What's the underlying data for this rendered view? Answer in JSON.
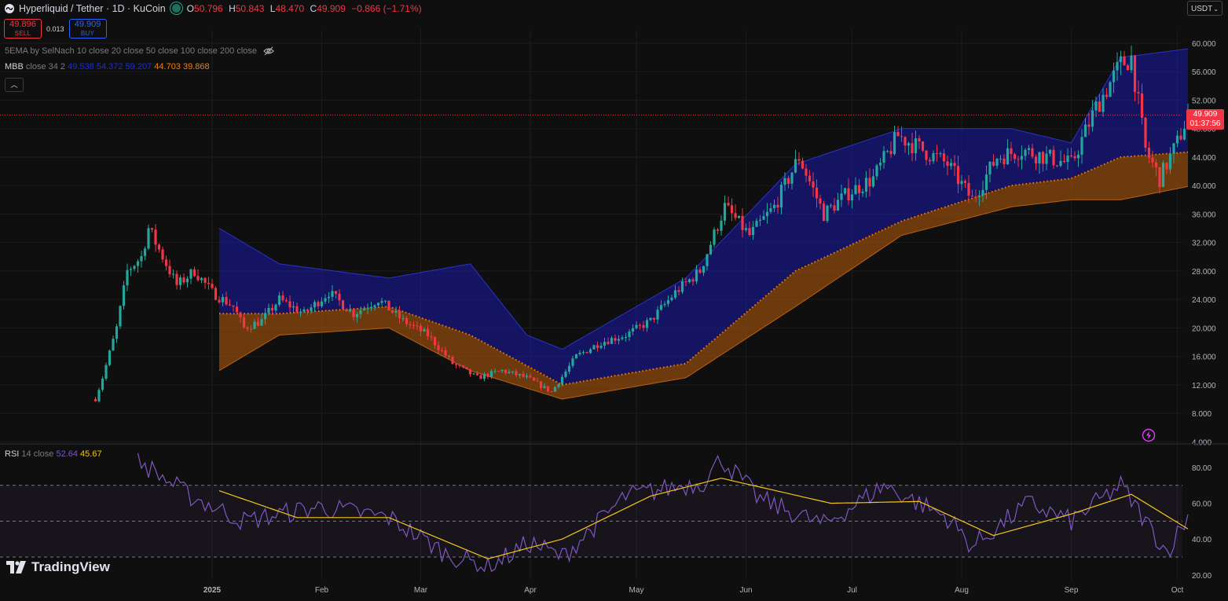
{
  "header": {
    "title": "Hyperliquid / Tether · 1D · KuCoin",
    "ohlc": [
      {
        "k": "O",
        "v": "50.796"
      },
      {
        "k": "H",
        "v": "50.843"
      },
      {
        "k": "L",
        "v": "48.470"
      },
      {
        "k": "C",
        "v": "49.909"
      }
    ],
    "change": "−0.866 (−1.71%)"
  },
  "trade": {
    "sell_price": "49.896",
    "sell_label": "SELL",
    "spread": "0.013",
    "buy_price": "49.909",
    "buy_label": "BUY"
  },
  "indicators": {
    "ema_label": "5EMA by SelNach 10 close 20 close 50 close 100 close 200 close",
    "mbb_name": "MBB",
    "mbb_params": "close 34 2",
    "mbb_values": [
      "49.538",
      "54.372",
      "59.207",
      "44.703",
      "39.868"
    ],
    "mbb_colors": [
      "#1e2bd8",
      "#1e2bd8",
      "#1e2bd8",
      "#f57c00",
      "#f57c00"
    ],
    "rsi_name": "RSI",
    "rsi_params": "14 close",
    "rsi_value": "52.64",
    "rsi_ma_value": "45.67"
  },
  "currency": "USDT",
  "price_label": {
    "price": "49.909",
    "countdown": "01:37:56"
  },
  "brand": "TradingView",
  "icons": [
    "hyperliquid-logo-icon",
    "eye-hidden-icon",
    "chevron-up-icon",
    "chevron-down-icon",
    "lightning-alert-icon",
    "tradingview-logo-icon"
  ],
  "colors": {
    "up": "#26a69a",
    "down": "#f23645",
    "upper_band": "#1a1aa8",
    "lower_band": "#a0520d",
    "basis": "#f57c00",
    "rsi": "#7e57c2",
    "rsi_ma": "#f5c518",
    "background": "#0f0f0f"
  },
  "chart_data": [
    {
      "type": "candlestick",
      "title": "Hyperliquid / Tether · 1D · KuCoin",
      "xlabel": "",
      "ylabel": "",
      "x_ticks": [
        "2025",
        "Feb",
        "Mar",
        "Apr",
        "May",
        "Jun",
        "Jul",
        "Aug",
        "Sep",
        "Oct"
      ],
      "y_ticks": [
        "60.000",
        "56.000",
        "52.000",
        "48.000",
        "44.000",
        "40.000",
        "36.000",
        "32.000",
        "28.000",
        "24.000",
        "20.000",
        "16.000",
        "12.000",
        "8.000",
        "4.000"
      ],
      "ylim": [
        4,
        60
      ],
      "close_path": [
        [
          "2024-11-29",
          10
        ],
        [
          "2024-12-01",
          13
        ],
        [
          "2024-12-05",
          20
        ],
        [
          "2024-12-08",
          28
        ],
        [
          "2024-12-12",
          30
        ],
        [
          "2024-12-14",
          34
        ],
        [
          "2024-12-17",
          31
        ],
        [
          "2024-12-22",
          26
        ],
        [
          "2024-12-27",
          28
        ],
        [
          "2025-01-01",
          25
        ],
        [
          "2025-01-07",
          23
        ],
        [
          "2025-01-10",
          20
        ],
        [
          "2025-01-15",
          21
        ],
        [
          "2025-01-20",
          24
        ],
        [
          "2025-01-27",
          22
        ],
        [
          "2025-02-03",
          25
        ],
        [
          "2025-02-10",
          22
        ],
        [
          "2025-02-17",
          24
        ],
        [
          "2025-02-24",
          21
        ],
        [
          "2025-03-03",
          19
        ],
        [
          "2025-03-10",
          15
        ],
        [
          "2025-03-17",
          13
        ],
        [
          "2025-03-24",
          14
        ],
        [
          "2025-03-31",
          13
        ],
        [
          "2025-04-07",
          11
        ],
        [
          "2025-04-14",
          16
        ],
        [
          "2025-04-21",
          18
        ],
        [
          "2025-04-28",
          19
        ],
        [
          "2025-05-05",
          21
        ],
        [
          "2025-05-12",
          25
        ],
        [
          "2025-05-19",
          28
        ],
        [
          "2025-05-26",
          37
        ],
        [
          "2025-06-02",
          33
        ],
        [
          "2025-06-09",
          37
        ],
        [
          "2025-06-16",
          44
        ],
        [
          "2025-06-23",
          36
        ],
        [
          "2025-06-30",
          39
        ],
        [
          "2025-07-07",
          41
        ],
        [
          "2025-07-14",
          47
        ],
        [
          "2025-07-21",
          45
        ],
        [
          "2025-07-28",
          43
        ],
        [
          "2025-08-04",
          38
        ],
        [
          "2025-08-11",
          44
        ],
        [
          "2025-08-18",
          45
        ],
        [
          "2025-08-25",
          44
        ],
        [
          "2025-09-01",
          43
        ],
        [
          "2025-09-08",
          51
        ],
        [
          "2025-09-15",
          57
        ],
        [
          "2025-09-18",
          58
        ],
        [
          "2025-09-22",
          45
        ],
        [
          "2025-09-26",
          41
        ],
        [
          "2025-10-01",
          46
        ],
        [
          "2025-10-04",
          49.909
        ]
      ],
      "last_close": 49.909,
      "bollinger": {
        "upper_path": [
          [
            "2025-01-03",
            34
          ],
          [
            "2025-01-20",
            29
          ],
          [
            "2025-02-20",
            27
          ],
          [
            "2025-03-15",
            29
          ],
          [
            "2025-03-31",
            19
          ],
          [
            "2025-04-10",
            17
          ],
          [
            "2025-05-15",
            27
          ],
          [
            "2025-06-15",
            43
          ],
          [
            "2025-07-15",
            48
          ],
          [
            "2025-08-15",
            48
          ],
          [
            "2025-09-01",
            46
          ],
          [
            "2025-09-15",
            58
          ],
          [
            "2025-10-04",
            59.207
          ]
        ],
        "basis_path": [
          [
            "2025-01-03",
            22
          ],
          [
            "2025-01-20",
            22
          ],
          [
            "2025-02-20",
            23
          ],
          [
            "2025-03-15",
            19
          ],
          [
            "2025-04-10",
            12
          ],
          [
            "2025-05-15",
            15
          ],
          [
            "2025-06-15",
            28
          ],
          [
            "2025-07-15",
            35
          ],
          [
            "2025-08-15",
            40
          ],
          [
            "2025-09-01",
            41
          ],
          [
            "2025-09-15",
            44
          ],
          [
            "2025-10-04",
            44.703
          ]
        ],
        "lower_path": [
          [
            "2025-01-03",
            14
          ],
          [
            "2025-01-20",
            19
          ],
          [
            "2025-02-20",
            20
          ],
          [
            "2025-03-15",
            14
          ],
          [
            "2025-04-10",
            10
          ],
          [
            "2025-05-15",
            13
          ],
          [
            "2025-06-15",
            23
          ],
          [
            "2025-07-15",
            33
          ],
          [
            "2025-08-15",
            37
          ],
          [
            "2025-09-01",
            38
          ],
          [
            "2025-09-15",
            38
          ],
          [
            "2025-10-04",
            39.868
          ]
        ]
      }
    },
    {
      "type": "line",
      "title": "RSI 14 close",
      "y_ticks": [
        "80.00",
        "60.00",
        "40.00",
        "20.00"
      ],
      "ylim": [
        20,
        85
      ],
      "bands": [
        70,
        50,
        30
      ],
      "series": [
        {
          "name": "RSI",
          "points": [
            [
              "2024-12-11",
              84
            ],
            [
              "2024-12-25",
              65
            ],
            [
              "2025-01-10",
              50
            ],
            [
              "2025-01-31",
              58
            ],
            [
              "2025-02-20",
              52
            ],
            [
              "2025-03-08",
              32
            ],
            [
              "2025-03-20",
              24
            ],
            [
              "2025-04-01",
              38
            ],
            [
              "2025-04-10",
              30
            ],
            [
              "2025-04-28",
              64
            ],
            [
              "2025-05-20",
              72
            ],
            [
              "2025-05-25",
              85
            ],
            [
              "2025-06-05",
              62
            ],
            [
              "2025-06-23",
              48
            ],
            [
              "2025-07-10",
              70
            ],
            [
              "2025-07-28",
              52
            ],
            [
              "2025-08-04",
              36
            ],
            [
              "2025-08-20",
              60
            ],
            [
              "2025-09-01",
              50
            ],
            [
              "2025-09-15",
              70
            ],
            [
              "2025-09-28",
              33
            ],
            [
              "2025-10-04",
              52.64
            ]
          ]
        },
        {
          "name": "RSI-based MA",
          "points": [
            [
              "2025-01-03",
              67
            ],
            [
              "2025-01-25",
              52
            ],
            [
              "2025-02-20",
              52
            ],
            [
              "2025-03-20",
              29
            ],
            [
              "2025-04-10",
              40
            ],
            [
              "2025-05-05",
              64
            ],
            [
              "2025-05-25",
              74
            ],
            [
              "2025-06-25",
              60
            ],
            [
              "2025-07-20",
              61
            ],
            [
              "2025-08-10",
              42
            ],
            [
              "2025-09-01",
              54
            ],
            [
              "2025-09-18",
              65
            ],
            [
              "2025-10-04",
              45.67
            ]
          ]
        }
      ]
    }
  ]
}
